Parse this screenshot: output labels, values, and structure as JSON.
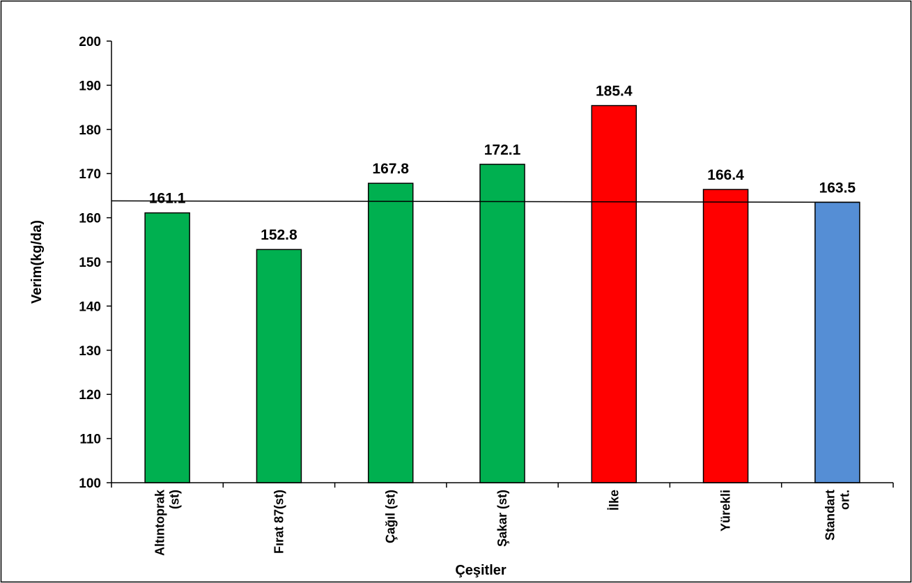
{
  "chart_data": {
    "type": "bar",
    "title": "",
    "xlabel": "Çeşitler",
    "ylabel": "Verim(kg/da)",
    "ylim": [
      100,
      200
    ],
    "yticks": [
      100,
      110,
      120,
      130,
      140,
      150,
      160,
      170,
      180,
      190,
      200
    ],
    "grid": false,
    "legend": "none",
    "categories": [
      [
        "Altıntoprak",
        "(st)"
      ],
      [
        "Fırat 87(st)"
      ],
      [
        "Çağıl (st)"
      ],
      [
        "Şakar (st)"
      ],
      [
        "İlke"
      ],
      [
        "Yürekli"
      ],
      [
        "Standart",
        "ort."
      ]
    ],
    "values": [
      161.1,
      152.8,
      167.8,
      172.1,
      185.4,
      166.4,
      163.5
    ],
    "value_labels": [
      "161.1",
      "152.8",
      "167.8",
      "172.1",
      "185.4",
      "166.4",
      "163.5"
    ],
    "bar_colors": [
      "#00b050",
      "#00b050",
      "#00b050",
      "#00b050",
      "#ff0000",
      "#ff0000",
      "#558ed5"
    ],
    "reference_line": {
      "value": 163.5,
      "color": "#000000"
    }
  }
}
